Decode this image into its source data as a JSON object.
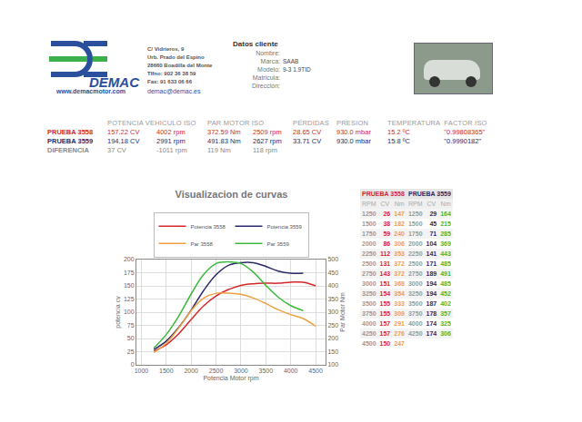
{
  "header": {
    "company": "DEMAC",
    "address": [
      "C/ Vidrieros, 9",
      "Urb. Prado del Espino",
      "28660 Boadilla del Monte",
      "Tlfno: 902 36 38 59",
      "Fax: 91 633 06 66"
    ],
    "web": "www.demacmotor.com",
    "email": "demac@demac.es",
    "client_title": "Datos cliente",
    "client_fields": [
      [
        "Nombre:",
        ""
      ],
      [
        "Marca:",
        "SAAB"
      ],
      [
        "Modelo:",
        "9-3 1.9TID"
      ],
      [
        "Matricula:",
        ""
      ],
      [
        "Dirección:",
        ""
      ]
    ]
  },
  "summary": {
    "headers": [
      "POTENCIA VEHICULO ISO",
      "PAR MOTOR ISO",
      "PÉRDIDAS",
      "PRESION",
      "TEMPERATURA",
      "FACTOR ISO"
    ],
    "rows": [
      [
        "PRUEBA 3558",
        "157.22 CV",
        "4002 rpm",
        "372.59 Nm",
        "2509 rpm",
        "28.65 CV",
        "930.0 mbar",
        "15.2 ºC",
        "\"0.99808365\""
      ],
      [
        "PRUEBA 3559",
        "194.18 CV",
        "2991 rpm",
        "491.83 Nm",
        "2627 rpm",
        "33.71 CV",
        "930.0 mbar",
        "15.8 ºC",
        "\"0.9990182\""
      ],
      [
        "DIFERENCIA",
        "37 CV",
        "-1011 rpm",
        "119 Nm",
        "118 rpm"
      ]
    ]
  },
  "rpm_table": {
    "columns": [
      "RPM",
      "CV",
      "Nm"
    ],
    "tests": [
      {
        "title": "PRUEBA 3558",
        "cv": "Potencia 3558",
        "nm": "Par 3558"
      },
      {
        "title": "PRUEBA 3559",
        "cv": "Potencia 3559",
        "nm": "Par 3559"
      }
    ]
  },
  "chart_data": {
    "type": "line",
    "title": "Visualizacion de curvas",
    "xlabel": "Potencia Motor rpm",
    "ylabel": "potencia cv",
    "y2label": "Par Motor Nm",
    "x": [
      1250,
      1500,
      1750,
      2000,
      2250,
      2500,
      2750,
      3000,
      3250,
      3500,
      3750,
      4000,
      4250,
      4500
    ],
    "xlim": [
      900,
      4700
    ],
    "xticks": [
      1000,
      1500,
      2000,
      2500,
      3000,
      3500,
      4000,
      4500
    ],
    "ylim": [
      0,
      200
    ],
    "yticks": [
      0,
      25,
      50,
      75,
      100,
      125,
      150,
      175,
      200
    ],
    "y2lim": [
      100,
      500
    ],
    "y2ticks": [
      100,
      150,
      200,
      250,
      300,
      350,
      400,
      450,
      500
    ],
    "grid": true,
    "legend": "top",
    "series": [
      {
        "name": "Potencia 3558",
        "color": "#d62728",
        "axis": "y",
        "values": [
          26,
          38,
          59,
          86,
          112,
          131,
          143,
          151,
          154,
          155,
          155,
          157,
          157,
          150
        ]
      },
      {
        "name": "Potencia 3559",
        "color": "#2b2a6b",
        "axis": "y",
        "values": [
          29,
          45,
          71,
          104,
          141,
          171,
          189,
          194,
          194,
          187,
          178,
          174,
          174,
          null
        ]
      },
      {
        "name": "Par 3558",
        "color": "#f0a040",
        "axis": "y2",
        "values": [
          147,
          182,
          240,
          306,
          353,
          372,
          372,
          368,
          354,
          333,
          309,
          291,
          276,
          247
        ]
      },
      {
        "name": "Par 3559",
        "color": "#3cb83c",
        "axis": "y2",
        "values": [
          164,
          215,
          285,
          369,
          443,
          485,
          491,
          485,
          452,
          402,
          357,
          325,
          306,
          null
        ]
      }
    ]
  }
}
